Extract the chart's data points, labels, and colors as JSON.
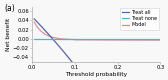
{
  "title": "(a)",
  "xlabel": "Threshold probability",
  "ylabel": "Net benefit",
  "xlim": [
    0.0,
    0.3
  ],
  "ylim": [
    -0.05,
    0.07
  ],
  "yticks": [
    -0.04,
    -0.02,
    0.0,
    0.02,
    0.04,
    0.06
  ],
  "xticks": [
    0.0,
    0.1,
    0.2,
    0.3
  ],
  "treat_all_color": "#5566aa",
  "treat_none_color": "#44bbcc",
  "model_color": "#dd8888",
  "legend_labels": [
    "Treat all",
    "Treat none",
    "Model"
  ],
  "background_color": "#f8f8f8",
  "prevalence": 0.048,
  "figwidth": 1.68,
  "figheight": 0.8,
  "title_fontsize": 5.5,
  "label_fontsize": 4.2,
  "tick_fontsize": 3.8,
  "legend_fontsize": 3.5,
  "linewidth": 0.9
}
